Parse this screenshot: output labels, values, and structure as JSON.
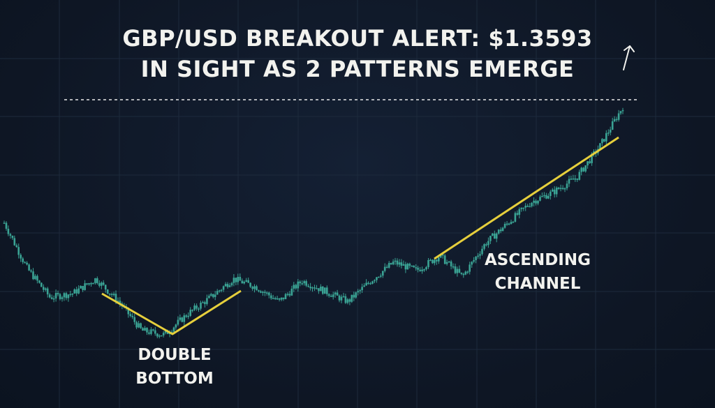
{
  "chart_data": {
    "type": "line",
    "title_lines": [
      "GBP/USD BREAKOUT ALERT: $1.3593",
      "IN SIGHT AS 2 PATTERNS EMERGE"
    ],
    "xlabel": "",
    "ylabel": "",
    "grid": true,
    "resistance_level": 1.3593,
    "series_trend": [
      1.3,
      1.278,
      1.264,
      1.266,
      1.273,
      1.262,
      1.248,
      1.246,
      1.256,
      1.264,
      1.273,
      1.269,
      1.262,
      1.272,
      1.267,
      1.262,
      1.272,
      1.281,
      1.277,
      1.284,
      1.274,
      1.29,
      1.3,
      1.31,
      1.315,
      1.322,
      1.337,
      1.356
    ],
    "annotations": [
      {
        "line1": "DOUBLE",
        "line2": "BOTTOM"
      },
      {
        "line1": "ASCENDING",
        "line2": "CHANNEL"
      }
    ],
    "colors": {
      "background": "#0f1827",
      "candles": "#3aa394",
      "pattern_lines": "#e6cf3c",
      "text": "#f2f2ee",
      "grid": "#1d2a3c",
      "resistance": "#e8e8e8"
    }
  }
}
